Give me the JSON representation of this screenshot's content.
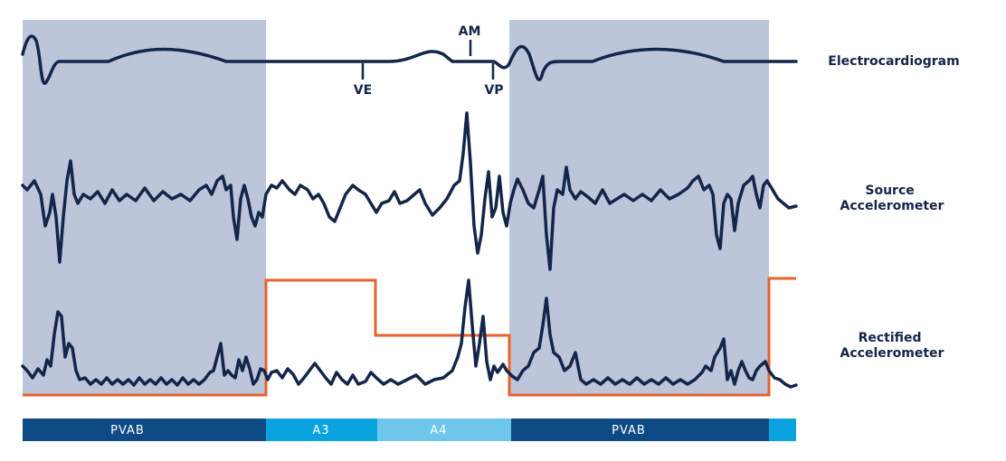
{
  "markers": {
    "am": "AM",
    "ve": "VE",
    "vp": "VP"
  },
  "traces": [
    {
      "label": [
        "Electrocardiogram"
      ]
    },
    {
      "label": [
        "Source",
        "Accelerometer"
      ]
    },
    {
      "label": [
        "Rectified",
        "Accelerometer"
      ]
    }
  ],
  "timeline": [
    "PVAB",
    "A3",
    "A4",
    "PVAB"
  ]
}
